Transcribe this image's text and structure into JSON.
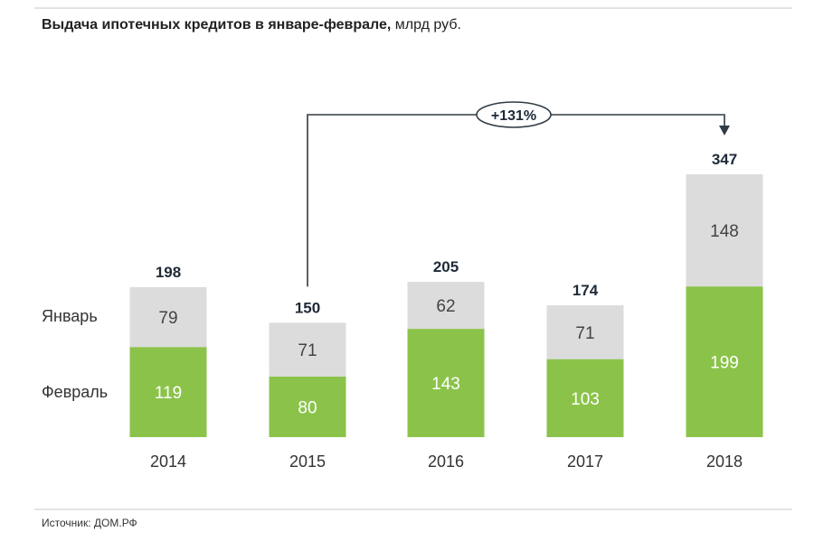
{
  "title": {
    "bold": "Выдача ипотечных кредитов в январе-феврале,",
    "normal": " млрд руб."
  },
  "source": "Источник: ДОМ.РФ",
  "chart_data": {
    "type": "bar",
    "stacked": true,
    "categories": [
      "2014",
      "2015",
      "2016",
      "2017",
      "2018"
    ],
    "series": [
      {
        "name": "Февраль",
        "values": [
          119,
          80,
          143,
          103,
          199
        ],
        "color": "#8bc34a"
      },
      {
        "name": "Январь",
        "values": [
          79,
          71,
          62,
          71,
          148
        ],
        "color": "#dcdcdc"
      }
    ],
    "totals": [
      198,
      150,
      205,
      174,
      347
    ],
    "annotation": {
      "label": "+131%",
      "from": "2015",
      "to": "2018"
    },
    "legend_placement": "left",
    "grid": false,
    "ylim": [
      0,
      347
    ]
  },
  "colors": {
    "february": "#8bc34a",
    "january": "#dcdcdc",
    "text_dark": "#1e2a38",
    "connector": "#2f3b45"
  }
}
